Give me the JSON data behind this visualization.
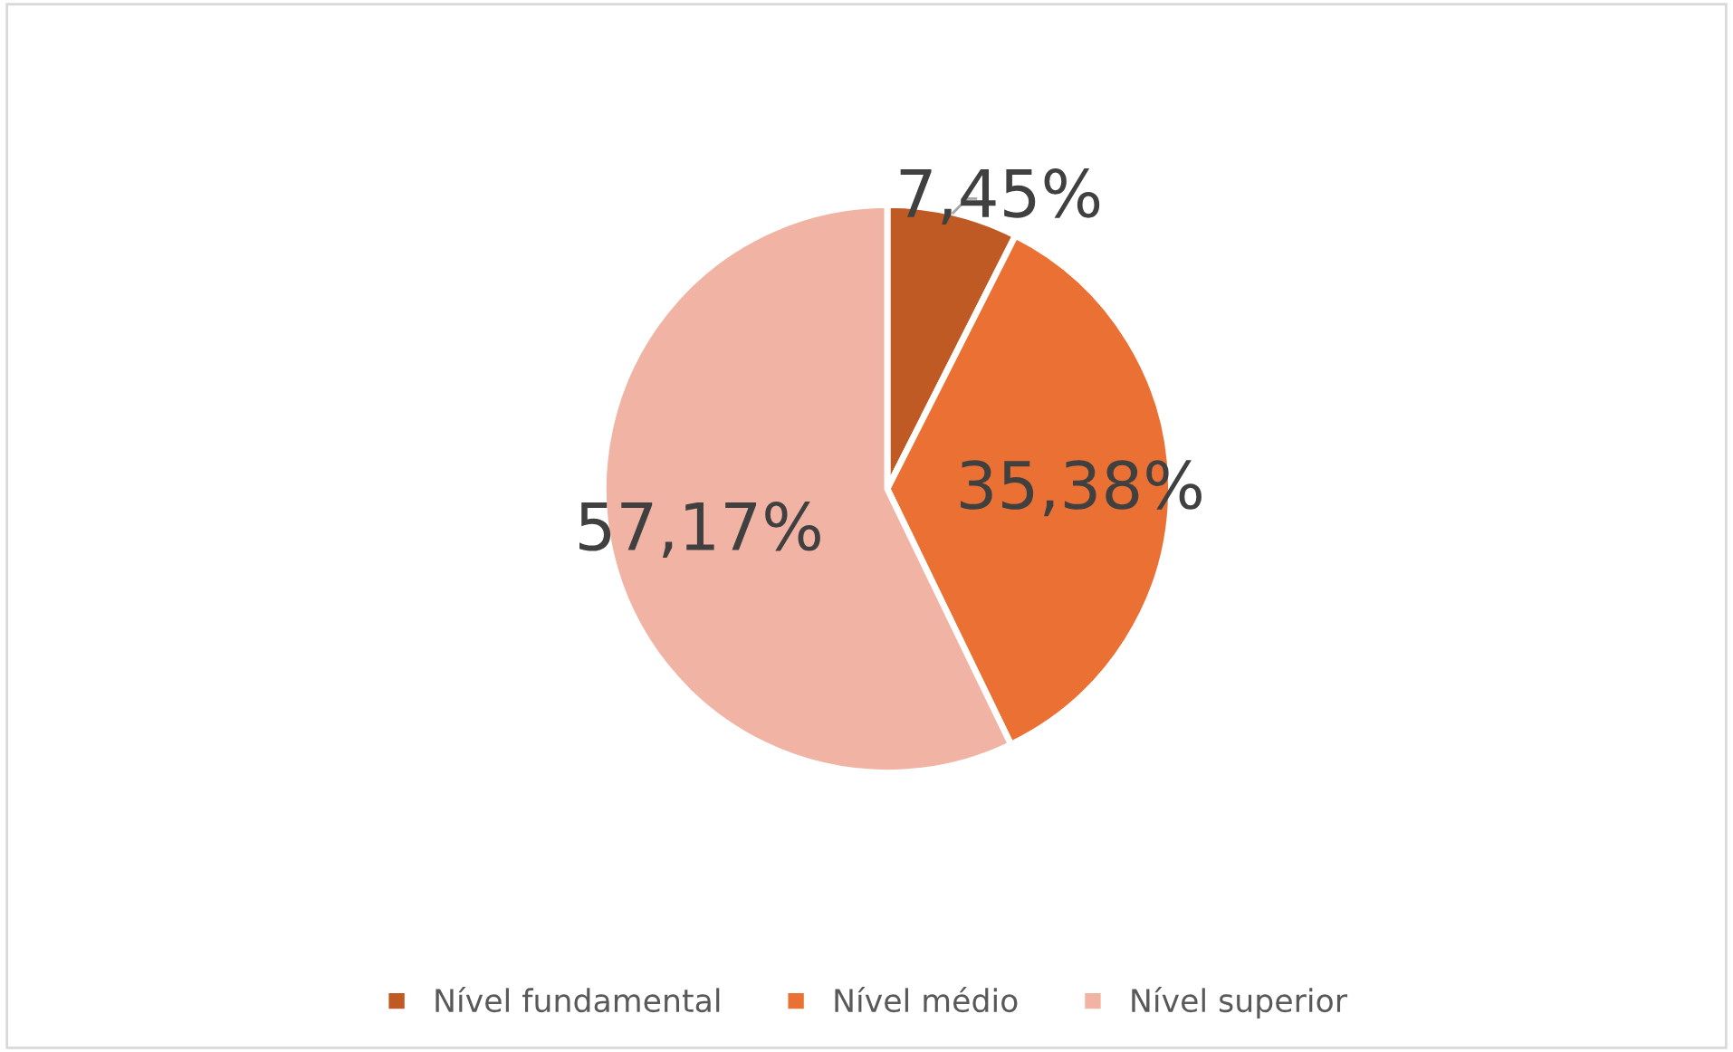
{
  "chart_data": {
    "type": "pie",
    "categories": [
      "Nível fundamental",
      "Nível médio",
      "Nível superior"
    ],
    "values": [
      7.45,
      35.38,
      57.17
    ],
    "colors": [
      "#c05a24",
      "#ea7133",
      "#f1b3a3"
    ],
    "value_labels": [
      "7,45%",
      "35,38%",
      "57,17%"
    ],
    "legend": "bottom"
  }
}
